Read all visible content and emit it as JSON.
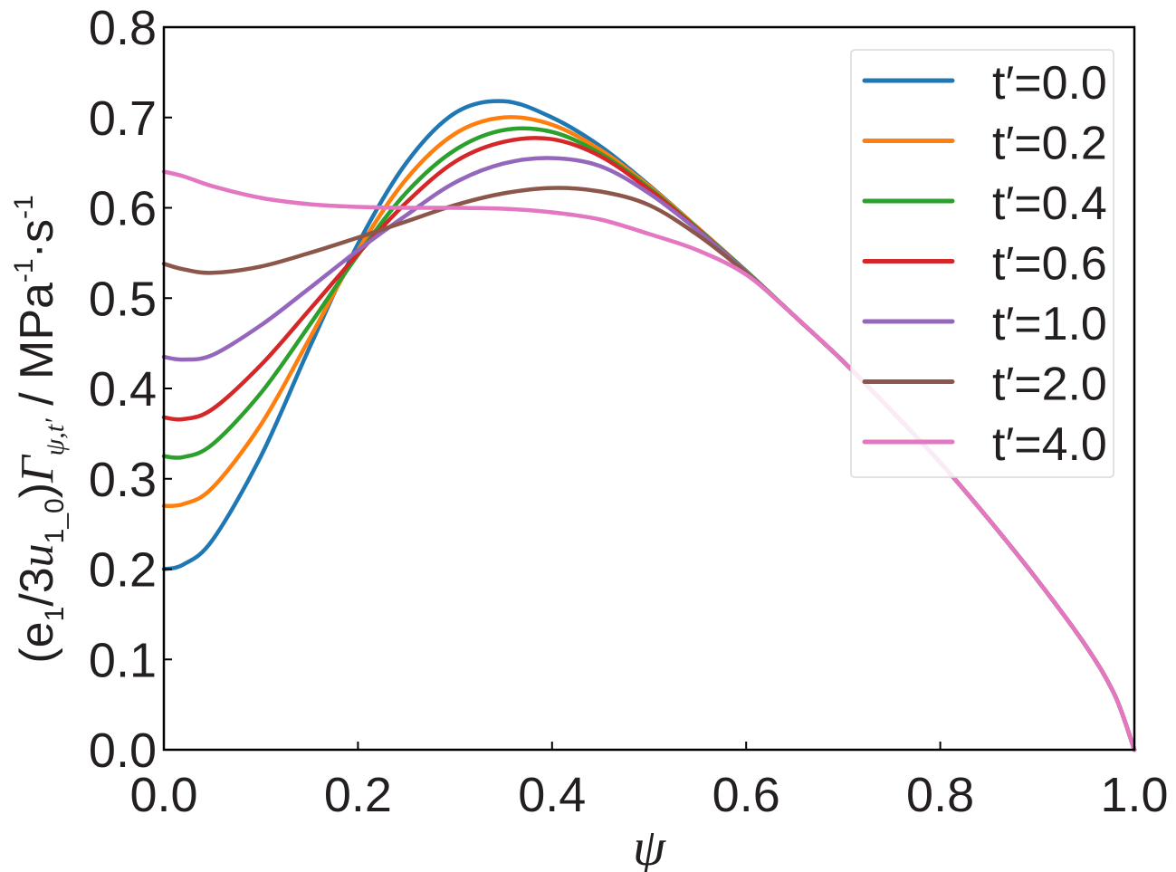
{
  "chart_data": {
    "type": "line",
    "xlabel": "ψ",
    "ylabel": {
      "parts": [
        {
          "text": "(e",
          "style": "normal"
        },
        {
          "text": "1",
          "style": "sub"
        },
        {
          "text": "/3",
          "style": "normal"
        },
        {
          "text": "u",
          "style": "italic"
        },
        {
          "text": "1_0",
          "style": "sub"
        },
        {
          "text": ")",
          "style": "normal"
        },
        {
          "text": "Γ",
          "style": "italic"
        },
        {
          "text": "ψ,t′",
          "style": "sub-italic"
        },
        {
          "text": " / MPa",
          "style": "normal"
        },
        {
          "text": "-1",
          "style": "sup"
        },
        {
          "text": "·s",
          "style": "normal"
        },
        {
          "text": "-1",
          "style": "sup"
        }
      ]
    },
    "xlim": [
      0.0,
      1.0
    ],
    "ylim": [
      0.0,
      0.8
    ],
    "xticks": [
      "0.0",
      "0.2",
      "0.4",
      "0.6",
      "0.8",
      "1.0"
    ],
    "yticks": [
      "0.0",
      "0.1",
      "0.2",
      "0.3",
      "0.4",
      "0.5",
      "0.6",
      "0.7",
      "0.8"
    ],
    "grid": false,
    "legend_position": "top-right",
    "x": [
      0.0,
      0.02,
      0.05,
      0.1,
      0.15,
      0.2,
      0.25,
      0.3,
      0.35,
      0.4,
      0.45,
      0.5,
      0.55,
      0.6,
      0.65,
      0.7,
      0.75,
      0.8,
      0.85,
      0.9,
      0.95,
      0.98,
      1.0
    ],
    "series": [
      {
        "name": "t′=0.0",
        "color": "#1f77b4",
        "values": [
          0.2,
          0.205,
          0.232,
          0.325,
          0.445,
          0.56,
          0.65,
          0.705,
          0.718,
          0.7,
          0.668,
          0.625,
          0.578,
          0.53,
          0.48,
          0.43,
          0.375,
          0.318,
          0.255,
          0.188,
          0.115,
          0.06,
          0.0
        ]
      },
      {
        "name": "t′=0.2",
        "color": "#ff7f0e",
        "values": [
          0.27,
          0.272,
          0.29,
          0.36,
          0.455,
          0.553,
          0.632,
          0.682,
          0.7,
          0.692,
          0.664,
          0.624,
          0.578,
          0.53,
          0.48,
          0.43,
          0.375,
          0.318,
          0.255,
          0.188,
          0.115,
          0.06,
          0.0
        ]
      },
      {
        "name": "t′=0.4",
        "color": "#2ca02c",
        "values": [
          0.325,
          0.324,
          0.338,
          0.395,
          0.47,
          0.548,
          0.617,
          0.664,
          0.686,
          0.684,
          0.66,
          0.622,
          0.577,
          0.53,
          0.48,
          0.43,
          0.375,
          0.318,
          0.255,
          0.188,
          0.115,
          0.06,
          0.0
        ]
      },
      {
        "name": "t′=0.6",
        "color": "#d62728",
        "values": [
          0.368,
          0.366,
          0.377,
          0.426,
          0.487,
          0.549,
          0.606,
          0.651,
          0.673,
          0.676,
          0.657,
          0.62,
          0.576,
          0.529,
          0.48,
          0.43,
          0.375,
          0.318,
          0.255,
          0.188,
          0.115,
          0.06,
          0.0
        ]
      },
      {
        "name": "t′=1.0",
        "color": "#9467bd",
        "values": [
          0.435,
          0.432,
          0.437,
          0.47,
          0.511,
          0.553,
          0.592,
          0.628,
          0.649,
          0.655,
          0.646,
          0.616,
          0.575,
          0.529,
          0.48,
          0.43,
          0.375,
          0.318,
          0.255,
          0.188,
          0.115,
          0.06,
          0.0
        ]
      },
      {
        "name": "t′=2.0",
        "color": "#8c564b",
        "values": [
          0.538,
          0.532,
          0.528,
          0.535,
          0.55,
          0.567,
          0.585,
          0.603,
          0.616,
          0.622,
          0.618,
          0.603,
          0.57,
          0.528,
          0.48,
          0.43,
          0.375,
          0.318,
          0.255,
          0.188,
          0.115,
          0.06,
          0.0
        ]
      },
      {
        "name": "t′=4.0",
        "color": "#e377c2",
        "values": [
          0.64,
          0.635,
          0.624,
          0.611,
          0.604,
          0.601,
          0.6,
          0.6,
          0.599,
          0.595,
          0.587,
          0.571,
          0.553,
          0.526,
          0.48,
          0.43,
          0.375,
          0.318,
          0.255,
          0.188,
          0.115,
          0.06,
          0.0
        ]
      }
    ]
  }
}
